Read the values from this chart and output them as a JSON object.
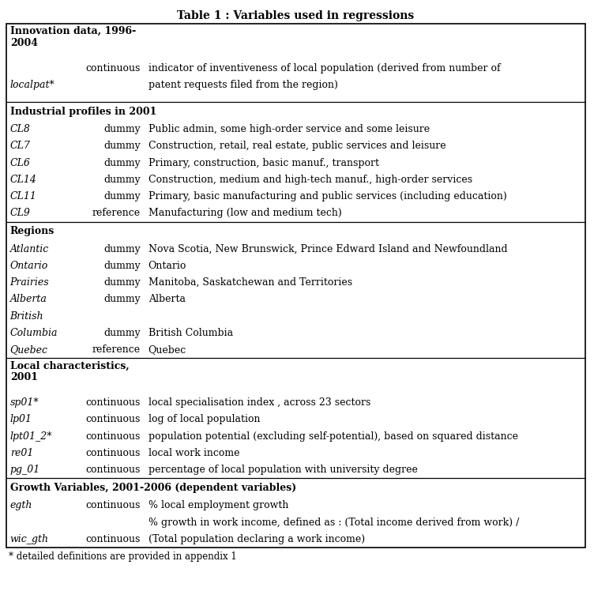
{
  "title": "Table 1 : Variables used in regressions",
  "footnote": "* detailed definitions are provided in appendix 1",
  "bg_color": "#ffffff",
  "border_color": "#000000",
  "text_color": "#000000",
  "font_size": 9.0,
  "rows": [
    {
      "type": "section_header",
      "text": "Innovation data, 1996-\n2004"
    },
    {
      "type": "data",
      "col1": "",
      "col2": "continuous",
      "col3": "indicator of inventiveness of local population (derived from number of",
      "col1_style": "normal"
    },
    {
      "type": "data",
      "col1": "localpat*",
      "col2": "",
      "col3": "patent requests filed from the region)",
      "col1_style": "italic"
    },
    {
      "type": "spacer"
    },
    {
      "type": "section_header",
      "text": "Industrial profiles in 2001"
    },
    {
      "type": "data",
      "col1": "CL8",
      "col2": "dummy",
      "col3": "Public admin, some high-order service and some leisure",
      "col1_style": "italic"
    },
    {
      "type": "data",
      "col1": "CL7",
      "col2": "dummy",
      "col3": "Construction, retail, real estate, public services and leisure",
      "col1_style": "italic"
    },
    {
      "type": "data",
      "col1": "CL6",
      "col2": "dummy",
      "col3": "Primary, construction, basic manuf., transport",
      "col1_style": "italic"
    },
    {
      "type": "data",
      "col1": "CL14",
      "col2": "dummy",
      "col3": "Construction, medium and high-tech manuf., high-order services",
      "col1_style": "italic"
    },
    {
      "type": "data",
      "col1": "CL11",
      "col2": "dummy",
      "col3": "Primary, basic manufacturing and public services (including education)",
      "col1_style": "italic"
    },
    {
      "type": "data",
      "col1": "CL9",
      "col2": "reference",
      "col3": "Manufacturing (low and medium tech)",
      "col1_style": "italic"
    },
    {
      "type": "section_header",
      "text": "Regions"
    },
    {
      "type": "data",
      "col1": "Atlantic",
      "col2": "dummy",
      "col3": "Nova Scotia, New Brunswick, Prince Edward Island and Newfoundland",
      "col1_style": "italic"
    },
    {
      "type": "data",
      "col1": "Ontario",
      "col2": "dummy",
      "col3": "Ontario",
      "col1_style": "italic"
    },
    {
      "type": "data",
      "col1": "Prairies",
      "col2": "dummy",
      "col3": "Manitoba, Saskatchewan and Territories",
      "col1_style": "italic"
    },
    {
      "type": "data",
      "col1": "Alberta",
      "col2": "dummy",
      "col3": "Alberta",
      "col1_style": "italic"
    },
    {
      "type": "data",
      "col1": "British",
      "col2": "",
      "col3": "",
      "col1_style": "italic"
    },
    {
      "type": "data",
      "col1": "Columbia",
      "col2": "dummy",
      "col3": "British Columbia",
      "col1_style": "italic"
    },
    {
      "type": "data",
      "col1": "Quebec",
      "col2": "reference",
      "col3": "Quebec",
      "col1_style": "italic"
    },
    {
      "type": "section_header",
      "text": "Local characteristics,\n2001"
    },
    {
      "type": "data",
      "col1": "sp01*",
      "col2": "continuous",
      "col3": "local specialisation index , across 23 sectors",
      "col1_style": "italic"
    },
    {
      "type": "data",
      "col1": "lp01",
      "col2": "continuous",
      "col3": "log of local population",
      "col1_style": "italic"
    },
    {
      "type": "data",
      "col1": "lpt01_2*",
      "col2": "continuous",
      "col3": "population potential (excluding self-potential), based on squared distance",
      "col1_style": "italic"
    },
    {
      "type": "data",
      "col1": "re01",
      "col2": "continuous",
      "col3": "local work income",
      "col1_style": "italic"
    },
    {
      "type": "data",
      "col1": "pg_01",
      "col2": "continuous",
      "col3": "percentage of local population with university degree",
      "col1_style": "italic"
    },
    {
      "type": "section_header",
      "text": "Growth Variables, 2001-2006 (dependent variables)"
    },
    {
      "type": "data",
      "col1": "egth",
      "col2": "continuous",
      "col3": "% local employment growth",
      "col1_style": "italic"
    },
    {
      "type": "data",
      "col1": "",
      "col2": "",
      "col3": "% growth in work income, defined as : (Total income derived from work) /",
      "col1_style": "italic"
    },
    {
      "type": "data",
      "col1": "wic_gth",
      "col2": "continuous",
      "col3": "(Total population declaring a work income)",
      "col1_style": "italic"
    }
  ]
}
